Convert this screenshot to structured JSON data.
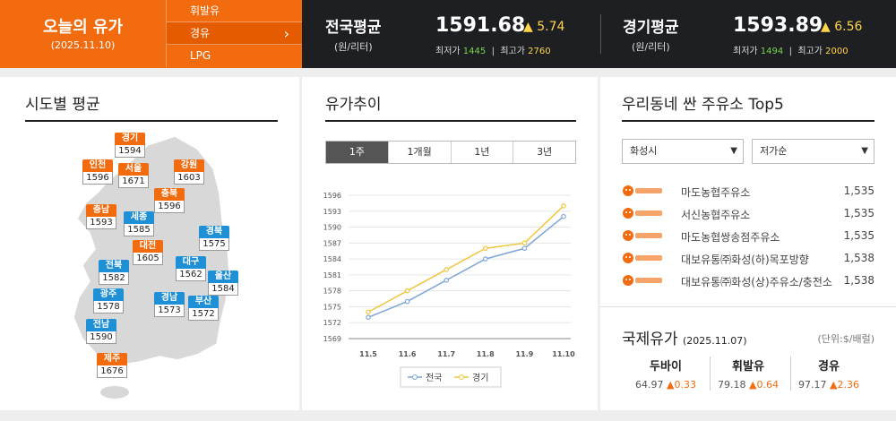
{
  "today": {
    "title": "오늘의 유가",
    "date": "(2025.11.10)"
  },
  "fuel_tabs": [
    {
      "label": "휘발유",
      "active": false
    },
    {
      "label": "경유",
      "active": true
    },
    {
      "label": "LPG",
      "active": false
    }
  ],
  "national_avg": {
    "name": "전국평균",
    "unit": "(원/리터)",
    "price": "1591.68",
    "delta": "▲ 5.74",
    "min_label": "최저가",
    "min": "1445",
    "max_label": "최고가",
    "max": "2760"
  },
  "gyeonggi_avg": {
    "name": "경기평균",
    "unit": "(원/리터)",
    "price": "1593.89",
    "delta": "▲ 6.56",
    "min_label": "최저가",
    "min": "1494",
    "max_label": "최고가",
    "max": "2000"
  },
  "regional": {
    "title": "시도별 평균",
    "markers": [
      {
        "name": "경기",
        "value": "1594",
        "color": "orange"
      },
      {
        "name": "인천",
        "value": "1596",
        "color": "orange"
      },
      {
        "name": "서울",
        "value": "1671",
        "color": "orange"
      },
      {
        "name": "강원",
        "value": "1603",
        "color": "orange"
      },
      {
        "name": "충북",
        "value": "1596",
        "color": "orange"
      },
      {
        "name": "충남",
        "value": "1593",
        "color": "orange"
      },
      {
        "name": "세종",
        "value": "1585",
        "color": "blue"
      },
      {
        "name": "대전",
        "value": "1605",
        "color": "orange"
      },
      {
        "name": "경북",
        "value": "1575",
        "color": "blue"
      },
      {
        "name": "전북",
        "value": "1582",
        "color": "blue"
      },
      {
        "name": "대구",
        "value": "1562",
        "color": "blue"
      },
      {
        "name": "울산",
        "value": "1584",
        "color": "blue"
      },
      {
        "name": "광주",
        "value": "1578",
        "color": "blue"
      },
      {
        "name": "경남",
        "value": "1573",
        "color": "blue"
      },
      {
        "name": "부산",
        "value": "1572",
        "color": "blue"
      },
      {
        "name": "전남",
        "value": "1590",
        "color": "blue"
      },
      {
        "name": "제주",
        "value": "1676",
        "color": "orange"
      }
    ]
  },
  "trend": {
    "title": "유가추이",
    "tabs": [
      {
        "label": "1주",
        "active": true
      },
      {
        "label": "1개월",
        "active": false
      },
      {
        "label": "1년",
        "active": false
      },
      {
        "label": "3년",
        "active": false
      }
    ]
  },
  "chart_data": {
    "type": "line",
    "x": [
      "11.5",
      "11.6",
      "11.7",
      "11.8",
      "11.9",
      "11.10"
    ],
    "series": [
      {
        "name": "전국",
        "color": "#7ea6d8",
        "values": [
          1573,
          1576,
          1580,
          1584,
          1586,
          1592
        ]
      },
      {
        "name": "경기",
        "color": "#f2c53d",
        "values": [
          1574,
          1578,
          1582,
          1586,
          1587,
          1594
        ]
      }
    ],
    "yticks": [
      "1596",
      "1593",
      "1590",
      "1587",
      "1584",
      "1581",
      "1578",
      "1575",
      "1572",
      "1569"
    ],
    "ylim": [
      1569,
      1596
    ],
    "grid": true,
    "legend": "bottom"
  },
  "top5": {
    "title": "우리동네 싼 주유소 Top5",
    "region_select": "화성시",
    "sort_select": "저가순",
    "brand_icon": "nh-alddeul-logo",
    "stations": [
      {
        "name": "마도농협주유소",
        "price": "1,535"
      },
      {
        "name": "서신농협주유소",
        "price": "1,535"
      },
      {
        "name": "마도농협쌍송점주유소",
        "price": "1,535"
      },
      {
        "name": "대보유통㈜화성(하)목포방향",
        "price": "1,538"
      },
      {
        "name": "대보유통㈜화성(상)주유소/충전소",
        "price": "1,538"
      }
    ]
  },
  "intl": {
    "title": "국제유가",
    "date": "(2025.11.07)",
    "unit": "(단위:$/배럴)",
    "items": [
      {
        "name": "두바이",
        "value": "64.97",
        "delta": "▲0.33"
      },
      {
        "name": "휘발유",
        "value": "79.18",
        "delta": "▲0.64"
      },
      {
        "name": "경유",
        "value": "97.17",
        "delta": "▲2.36"
      }
    ]
  }
}
